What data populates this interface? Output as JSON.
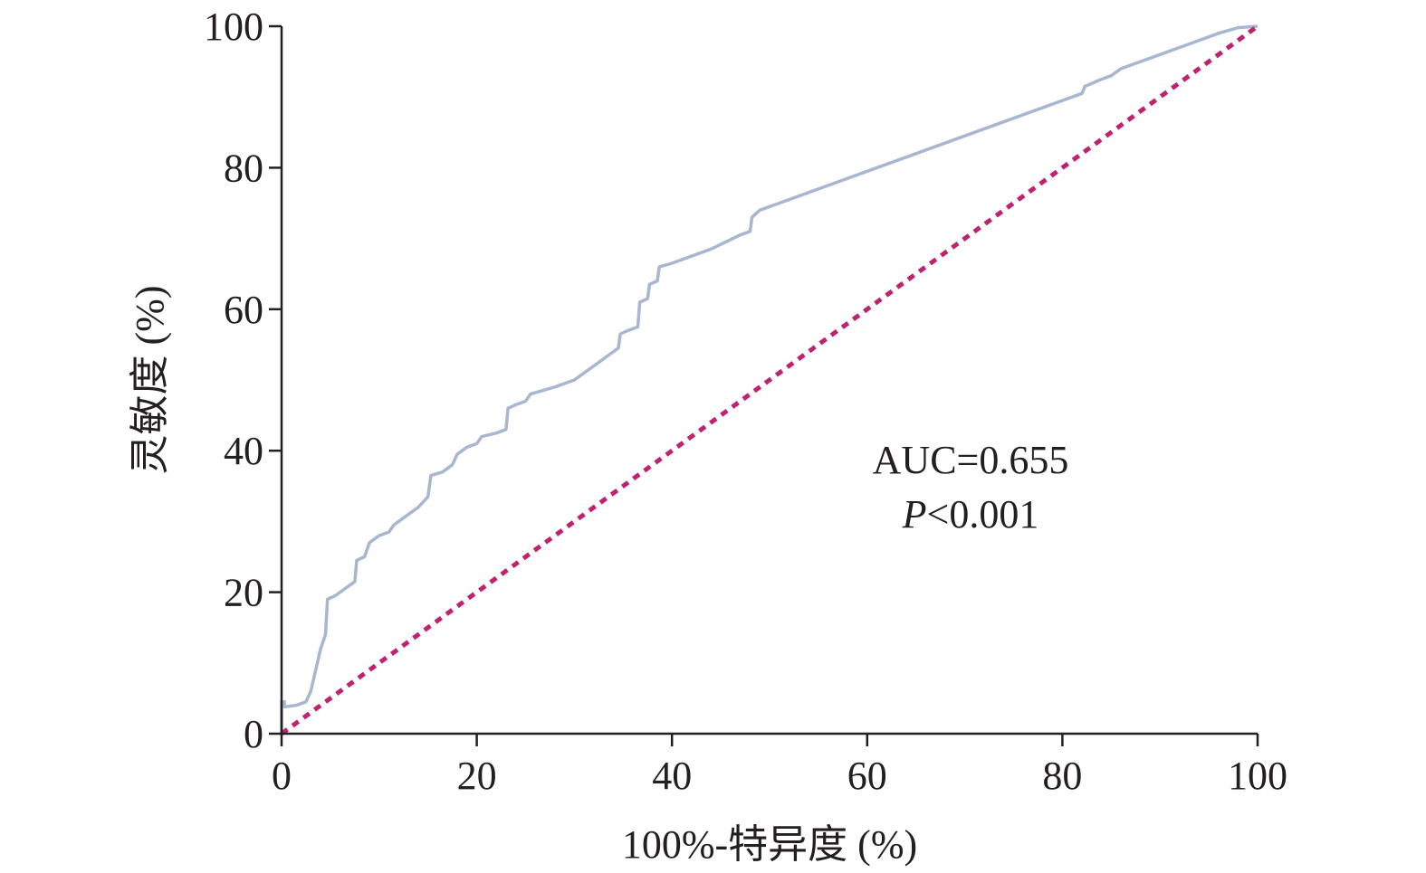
{
  "chart_data": {
    "type": "line",
    "xlabel": "100%-特异度 (%)",
    "ylabel": "灵敏度 (%)",
    "xlim": [
      0,
      100
    ],
    "ylim": [
      0,
      100
    ],
    "xticks": [
      "0",
      "20",
      "40",
      "60",
      "80",
      "100"
    ],
    "yticks": [
      "0",
      "20",
      "40",
      "60",
      "80",
      "100"
    ],
    "grid": false,
    "annotations": {
      "auc": "AUC=0.655",
      "p_symbol": "P",
      "p_value": "<0.001"
    },
    "series": [
      {
        "color": "#a8b6d0",
        "points": [
          [
            0,
            0
          ],
          [
            0,
            4.5
          ],
          [
            0.3,
            4.5
          ],
          [
            0.3,
            3.8
          ],
          [
            1.5,
            4
          ],
          [
            2.5,
            4.5
          ],
          [
            3,
            6
          ],
          [
            3.5,
            9
          ],
          [
            4,
            12
          ],
          [
            4.5,
            14
          ],
          [
            4.7,
            19
          ],
          [
            5.5,
            19.5
          ],
          [
            7,
            21
          ],
          [
            7.5,
            21.5
          ],
          [
            7.7,
            24.5
          ],
          [
            8.5,
            25
          ],
          [
            9,
            27
          ],
          [
            10,
            28
          ],
          [
            11,
            28.5
          ],
          [
            11.5,
            29.5
          ],
          [
            13,
            31
          ],
          [
            14,
            32
          ],
          [
            15,
            33.5
          ],
          [
            15.3,
            36.5
          ],
          [
            16.5,
            37
          ],
          [
            17.5,
            38
          ],
          [
            18,
            39.5
          ],
          [
            19,
            40.5
          ],
          [
            20,
            41
          ],
          [
            20.5,
            42
          ],
          [
            22,
            42.5
          ],
          [
            23,
            43
          ],
          [
            23.2,
            46
          ],
          [
            24,
            46.5
          ],
          [
            25,
            47
          ],
          [
            25.5,
            48
          ],
          [
            28,
            49
          ],
          [
            30,
            50
          ],
          [
            31,
            51
          ],
          [
            32,
            52
          ],
          [
            33.5,
            53.5
          ],
          [
            34.5,
            54.5
          ],
          [
            34.7,
            56.5
          ],
          [
            35.5,
            57
          ],
          [
            36.5,
            57.5
          ],
          [
            36.7,
            61
          ],
          [
            37.5,
            61.5
          ],
          [
            37.7,
            63.5
          ],
          [
            38.5,
            64
          ],
          [
            38.7,
            66
          ],
          [
            40,
            66.5
          ],
          [
            42,
            67.5
          ],
          [
            44,
            68.5
          ],
          [
            45.5,
            69.5
          ],
          [
            47,
            70.5
          ],
          [
            48,
            71
          ],
          [
            48.2,
            73
          ],
          [
            49,
            74
          ],
          [
            52,
            75.5
          ],
          [
            55,
            77
          ],
          [
            60,
            79.5
          ],
          [
            65,
            82
          ],
          [
            70,
            84.5
          ],
          [
            75,
            87
          ],
          [
            80,
            89.5
          ],
          [
            82,
            90.5
          ],
          [
            82.3,
            91.5
          ],
          [
            84,
            92.5
          ],
          [
            85,
            93
          ],
          [
            86,
            94
          ],
          [
            88,
            95
          ],
          [
            90,
            96
          ],
          [
            93,
            97.5
          ],
          [
            96,
            99
          ],
          [
            98,
            99.8
          ],
          [
            100,
            100
          ]
        ]
      },
      {
        "color": "#c0226e",
        "dashed": true,
        "points": [
          [
            0,
            0
          ],
          [
            100,
            100
          ]
        ]
      }
    ]
  }
}
